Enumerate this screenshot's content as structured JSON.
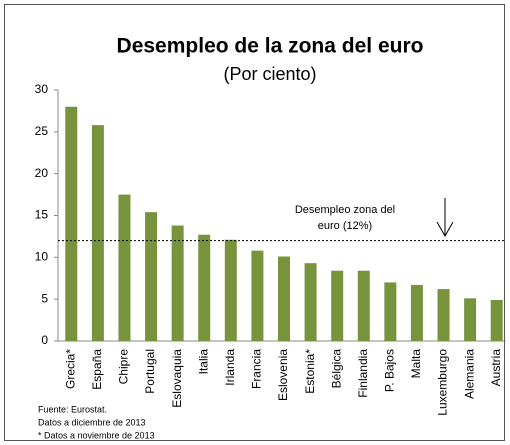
{
  "chart_data": {
    "type": "bar",
    "title": "Desempleo de la zona del euro",
    "subtitle": "(Por ciento)",
    "categories": [
      "Grecia*",
      "España",
      "Chipre",
      "Portugal",
      "Eslovaquia",
      "Italia",
      "Irlanda",
      "Francia",
      "Eslovenia",
      "Estonia*",
      "Bélgica",
      "Finlandia",
      "P. Bajos",
      "Malta",
      "Luxemburgo",
      "Alemania",
      "Austria"
    ],
    "values": [
      28.0,
      25.8,
      17.5,
      15.4,
      13.8,
      12.7,
      12.1,
      10.8,
      10.1,
      9.3,
      8.4,
      8.4,
      7.0,
      6.7,
      6.2,
      5.1,
      4.9
    ],
    "color": "#77933c",
    "ylim": [
      0,
      30
    ],
    "yticks": [
      0,
      5,
      10,
      15,
      20,
      25,
      30
    ],
    "grid": false,
    "reference_line": {
      "value": 12,
      "label": [
        "Desempleo zona del",
        "euro (12%)"
      ]
    },
    "notes": [
      "Fuente: Eurostat.",
      "Datos a diciembre de 2013",
      "* Datos a noviembre de 2013"
    ]
  }
}
